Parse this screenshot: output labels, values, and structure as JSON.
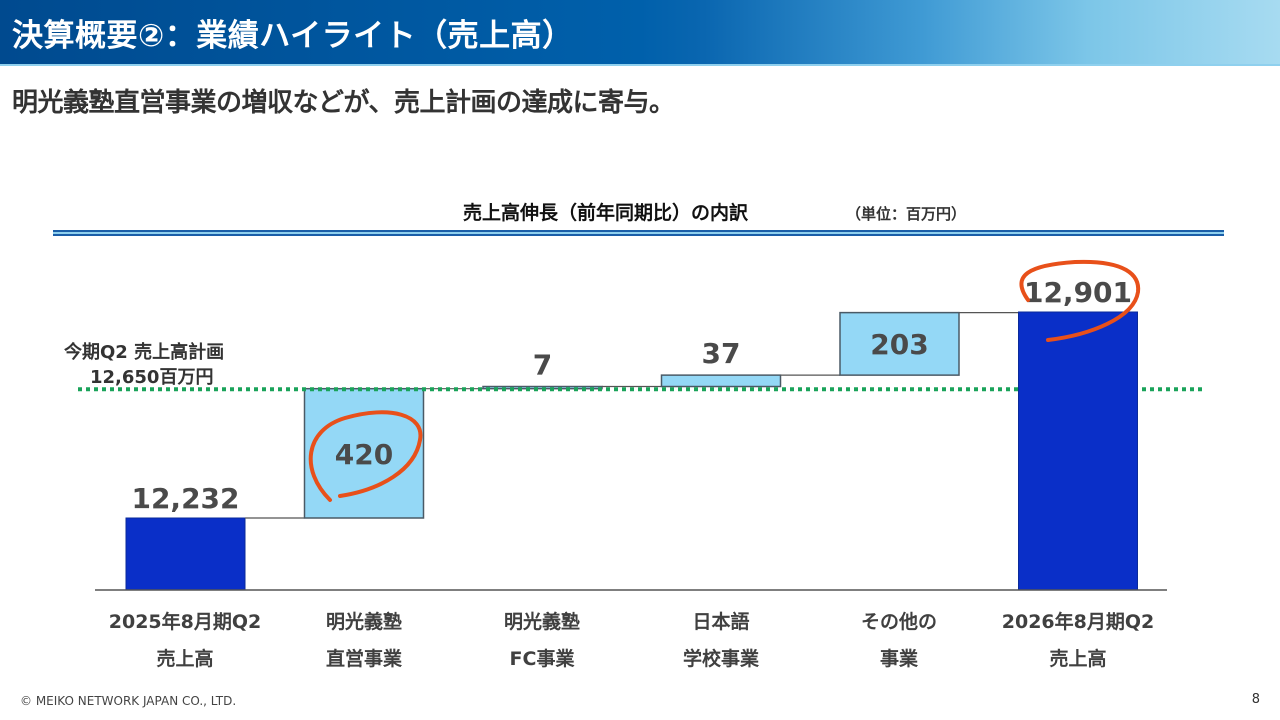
{
  "header": {
    "title": "決算概要②：業績ハイライト（売上高）"
  },
  "subtitle": "明光義塾直営事業の増収などが、売上計画の達成に寄与。",
  "chart": {
    "title": "売上高伸長（前年同期比）の内訳",
    "unit": "（単位：百万円）",
    "plan_label_line1": "今期Q2 売上高計画",
    "plan_label_line2": "12,650百万円",
    "x_labels": [
      {
        "line1": "2025年8月期Q2",
        "line2": "売上高"
      },
      {
        "line1": "明光義塾",
        "line2": "直営事業"
      },
      {
        "line1": "明光義塾",
        "line2": "FC事業"
      },
      {
        "line1": "日本語",
        "line2": "学校事業"
      },
      {
        "line1": "その他の",
        "line2": "事業"
      },
      {
        "line1": "2026年8月期Q2",
        "line2": "売上高"
      }
    ],
    "value_labels": [
      "12,232",
      "420",
      "7",
      "37",
      "203",
      "12,901"
    ]
  },
  "chart_data": {
    "type": "bar",
    "subtype": "waterfall",
    "title": "売上高伸長（前年同期比）の内訳",
    "unit": "百万円",
    "categories": [
      "2025年8月期Q2 売上高",
      "明光義塾 直営事業",
      "明光義塾 FC事業",
      "日本語 学校事業",
      "その他の 事業",
      "2026年8月期Q2 売上高"
    ],
    "values": [
      12232,
      420,
      7,
      37,
      203,
      12901
    ],
    "bar_kind": [
      "total",
      "increment",
      "increment",
      "increment",
      "increment",
      "total"
    ],
    "reference_line": {
      "label": "今期Q2 売上高計画 12,650百万円",
      "value": 12650,
      "style": "dotted",
      "color": "#1aa35a"
    },
    "highlighted": [
      "明光義塾 直営事業",
      "2026年8月期Q2 売上高"
    ],
    "colors": {
      "total": "#0a2fc8",
      "increment": "#94d8f6",
      "highlight_circle": "#e8501a"
    },
    "xlabel": "",
    "ylabel": "",
    "grid": false,
    "legend": false
  },
  "footer": {
    "copyright": "© MEIKO NETWORK JAPAN CO., LTD.",
    "page": "8"
  }
}
